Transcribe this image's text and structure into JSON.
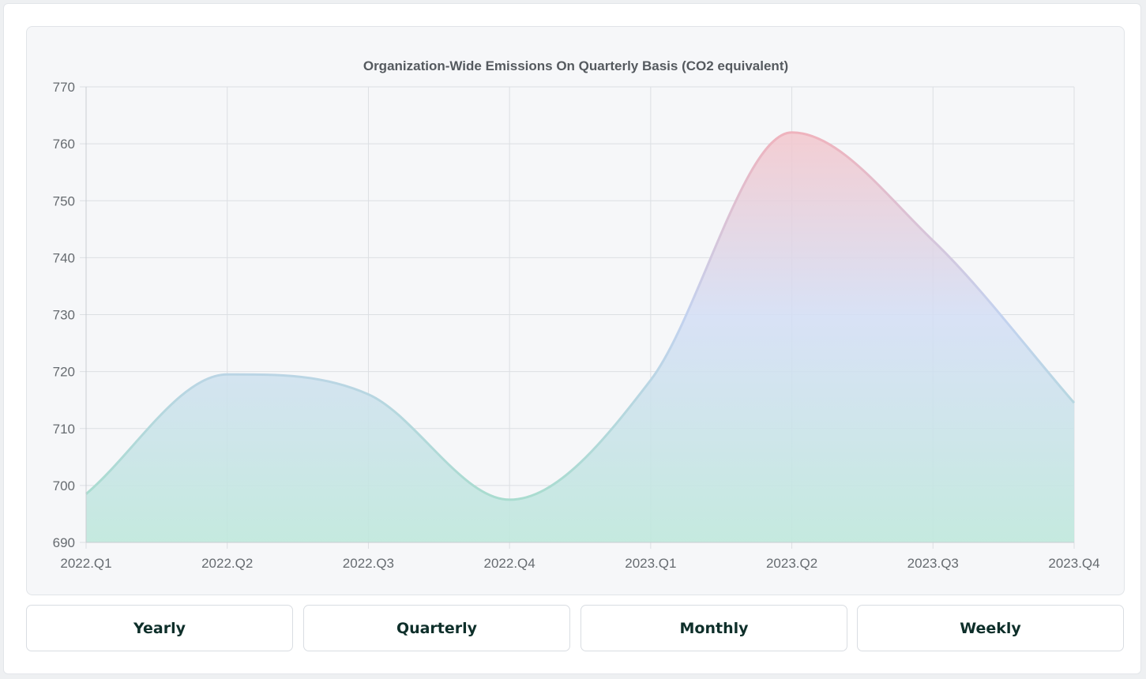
{
  "chart_data": {
    "type": "area",
    "title": "Organization-Wide Emissions On Quarterly Basis (CO2 equivalent)",
    "xlabel": "",
    "ylabel": "",
    "categories": [
      "2022.Q1",
      "2022.Q2",
      "2022.Q3",
      "2022.Q4",
      "2023.Q1",
      "2023.Q2",
      "2023.Q3",
      "2023.Q4"
    ],
    "series": [
      {
        "values": [
          698.5,
          719.5,
          716,
          697.5,
          718.5,
          762,
          743,
          714.5
        ]
      }
    ],
    "ylim": [
      690,
      770
    ],
    "yticks": [
      690,
      700,
      710,
      720,
      730,
      740,
      750,
      760,
      770
    ],
    "grid": true,
    "legend": "none",
    "gradient_colors": {
      "bottom": "#bfe8dc",
      "middle": "#d3def5",
      "top": "#f3c6cc",
      "line_low": "#a9dccf",
      "line_high": "#efb3bd"
    }
  },
  "controls": {
    "buttons": [
      {
        "label": "Yearly"
      },
      {
        "label": "Quarterly"
      },
      {
        "label": "Monthly"
      },
      {
        "label": "Weekly"
      }
    ]
  }
}
